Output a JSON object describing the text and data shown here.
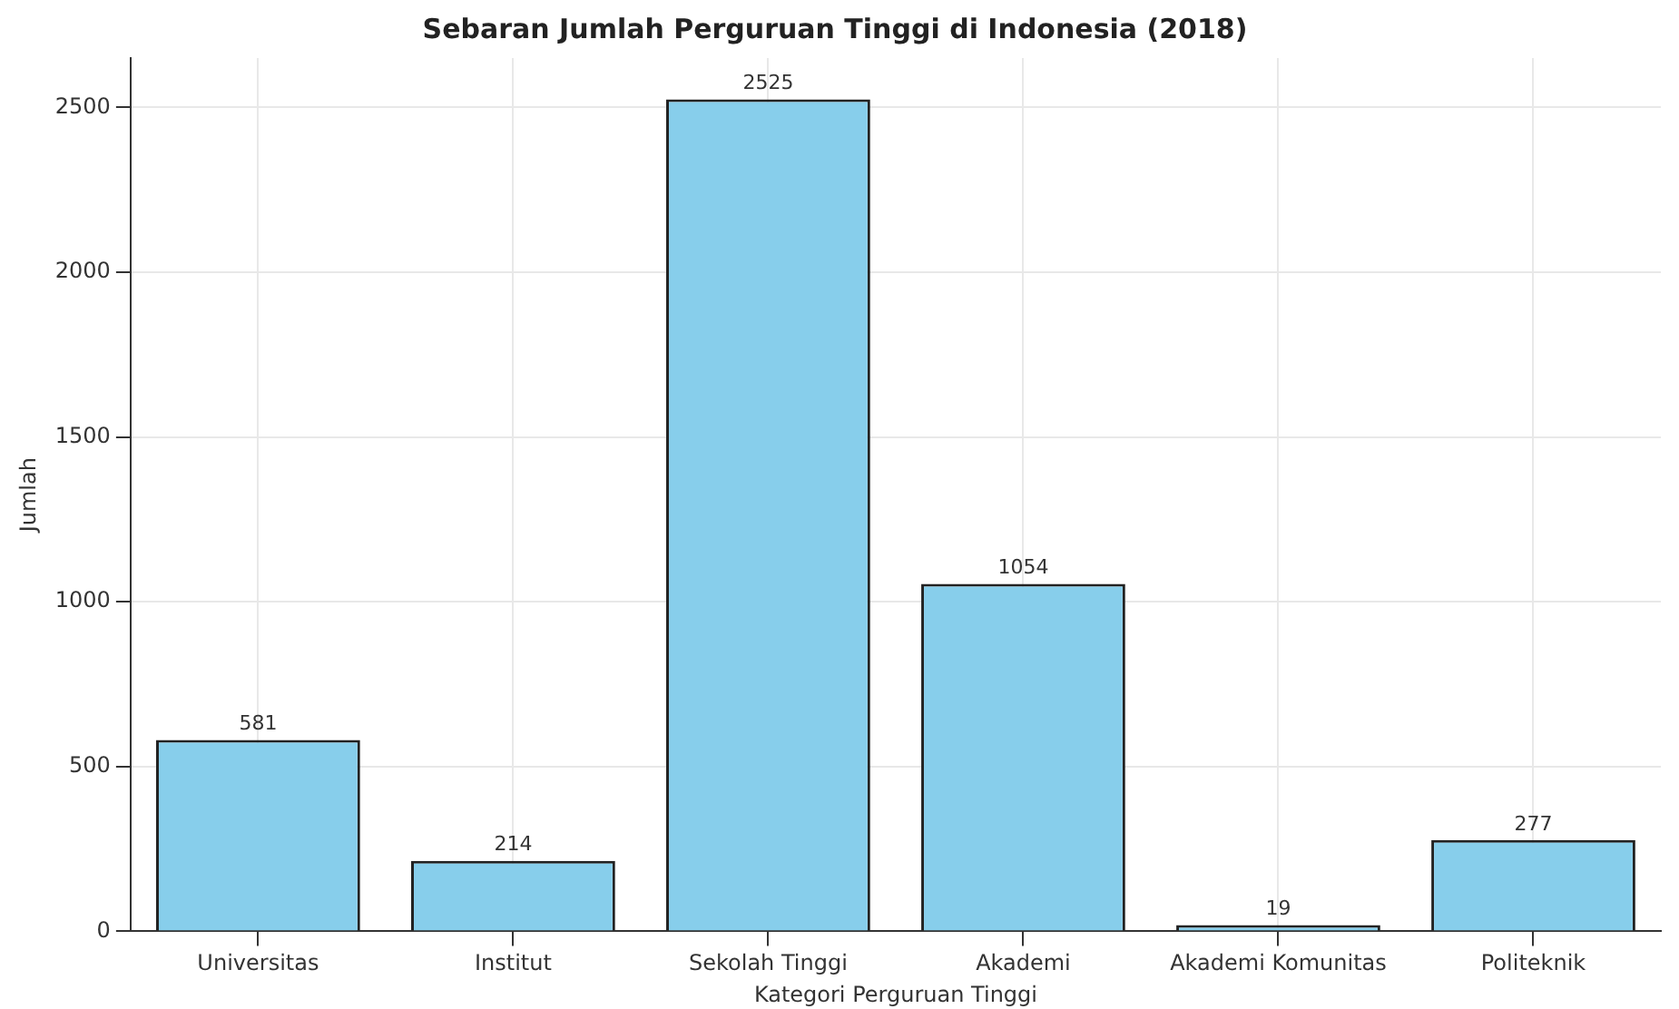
{
  "chart_data": {
    "type": "bar",
    "title": "Sebaran Jumlah Perguruan Tinggi di Indonesia (2018)",
    "xlabel": "Kategori Perguruan Tinggi",
    "ylabel": "Jumlah",
    "categories": [
      "Universitas",
      "Institut",
      "Sekolah Tinggi",
      "Akademi",
      "Akademi Komunitas",
      "Politeknik"
    ],
    "values": [
      581,
      214,
      2525,
      1054,
      19,
      277
    ],
    "color": "#87ceeb",
    "ylim": [
      0,
      2650
    ],
    "yticks": [
      0,
      500,
      1000,
      1500,
      2000,
      2500
    ],
    "grid": true,
    "data_labels": true,
    "legend": false
  }
}
